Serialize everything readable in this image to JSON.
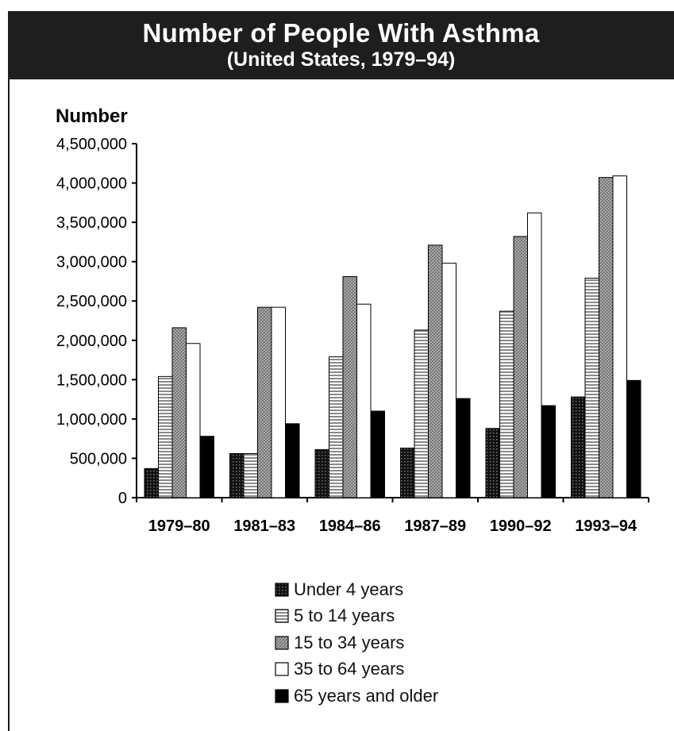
{
  "header": {
    "title": "Number of People With Asthma",
    "subtitle": "(United States, 1979–94)"
  },
  "chart_data": {
    "type": "bar",
    "title": "Number of People With Asthma",
    "subtitle": "(United States, 1979–94)",
    "ylabel": "Number",
    "xlabel": "",
    "categories": [
      "1979–80",
      "1981–83",
      "1984–86",
      "1987–89",
      "1990–92",
      "1993–94"
    ],
    "ylim": [
      0,
      4500000
    ],
    "yticks": [
      0,
      500000,
      1000000,
      1500000,
      2000000,
      2500000,
      3000000,
      3500000,
      4000000,
      4500000
    ],
    "ytick_labels": [
      "0",
      "500,000",
      "1,000,000",
      "1,500,000",
      "2,000,000",
      "2,500,000",
      "3,000,000",
      "3,500,000",
      "4,000,000",
      "4,500,000"
    ],
    "grid": false,
    "legend_position": "bottom",
    "series": [
      {
        "name": "Under 4 years",
        "pattern": "dark-dotted",
        "values": [
          370000,
          560000,
          610000,
          630000,
          880000,
          1280000
        ]
      },
      {
        "name": "5 to 14 years",
        "pattern": "horizontal-lines",
        "values": [
          1540000,
          560000,
          1790000,
          2130000,
          2370000,
          2790000
        ]
      },
      {
        "name": "15 to 34 years",
        "pattern": "crosshatch-gray",
        "values": [
          2160000,
          2420000,
          2810000,
          3210000,
          3320000,
          4070000
        ]
      },
      {
        "name": "35 to 64 years",
        "pattern": "white",
        "values": [
          1960000,
          2420000,
          2460000,
          2980000,
          3620000,
          4090000
        ]
      },
      {
        "name": "65 years and older",
        "pattern": "solid-black",
        "values": [
          780000,
          940000,
          1100000,
          1260000,
          1170000,
          1490000
        ]
      }
    ]
  }
}
